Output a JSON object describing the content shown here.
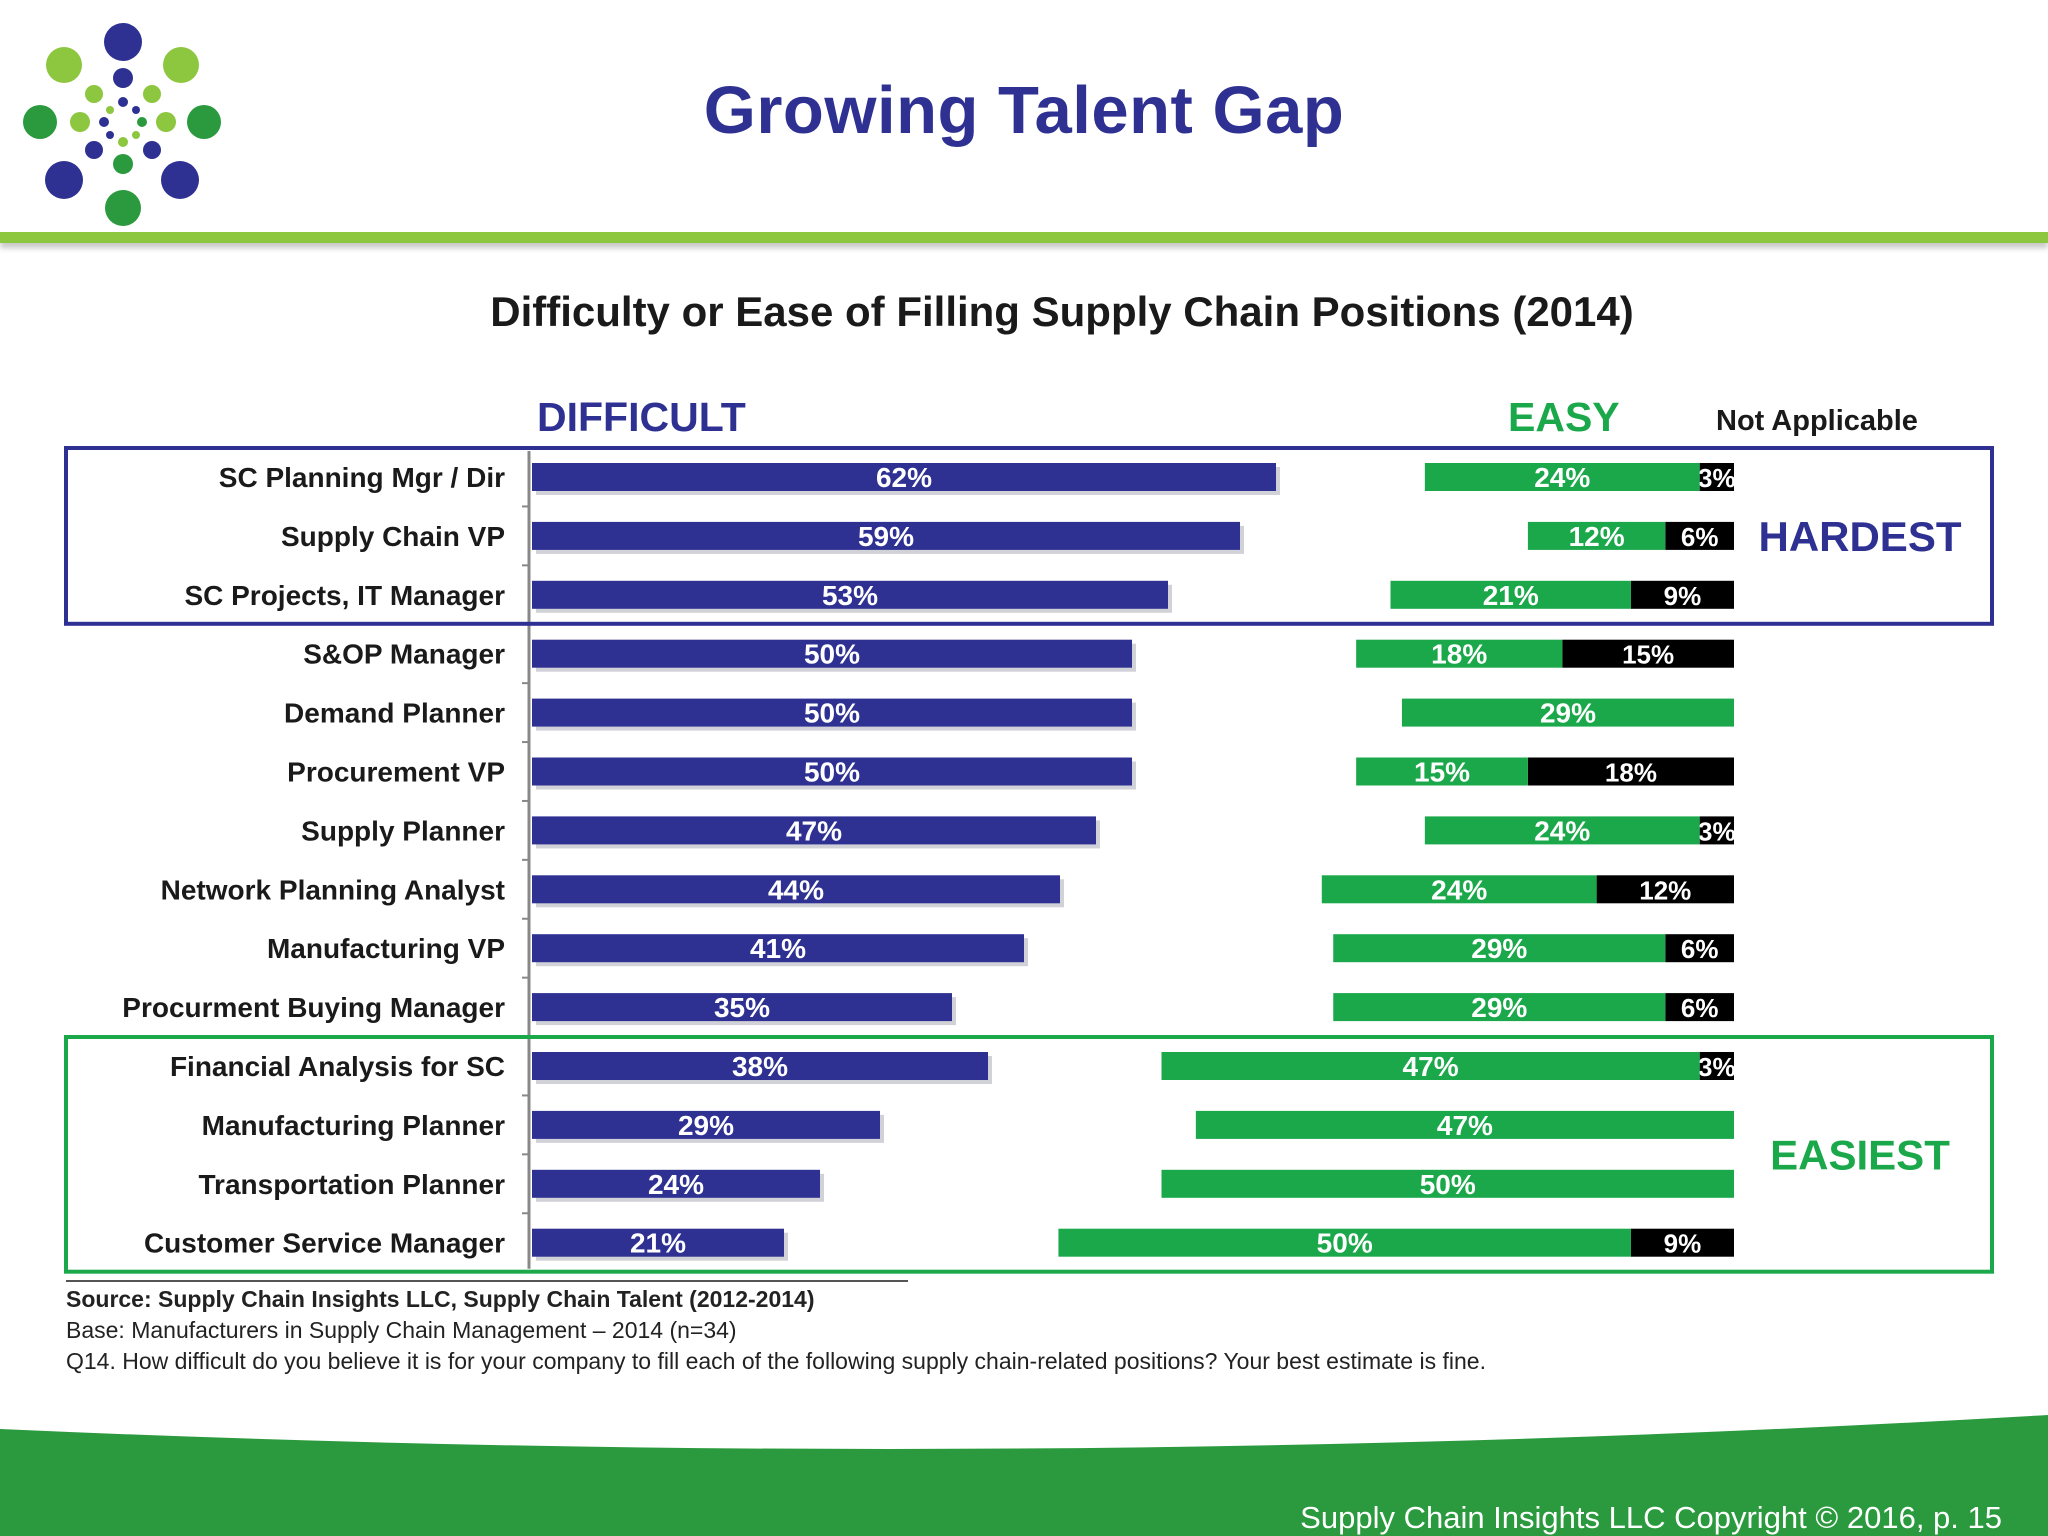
{
  "slide": {
    "title": "Growing Talent Gap",
    "footer": "Supply Chain Insights LLC Copyright © 2016, p. 15",
    "colors": {
      "title": "#2e3192",
      "header_rule": "#8dc63f",
      "footer_band": "#2b9a3e"
    }
  },
  "chart_data": {
    "type": "bar",
    "title": "Difficulty or Ease of Filling Supply Chain Positions (2014)",
    "column_headers": {
      "difficult": "DIFFICULT",
      "easy": "EASY",
      "not_applicable": "Not Applicable"
    },
    "group_labels": {
      "hardest": "HARDEST",
      "easiest": "EASIEST"
    },
    "categories": [
      "SC Planning Mgr / Dir",
      "Supply Chain VP",
      "SC Projects, IT Manager",
      "S&OP Manager",
      "Demand Planner",
      "Procurement VP",
      "Supply Planner",
      "Network Planning Analyst",
      "Manufacturing VP",
      "Procurment Buying Manager",
      "Financial Analysis for SC",
      "Manufacturing Planner",
      "Transportation Planner",
      "Customer Service Manager"
    ],
    "series": [
      {
        "name": "DIFFICULT",
        "color": "#2e3192",
        "values": [
          62,
          59,
          53,
          50,
          50,
          50,
          47,
          44,
          41,
          35,
          38,
          29,
          24,
          21
        ],
        "labels": [
          "62%",
          "59%",
          "53%",
          "50%",
          "50%",
          "50%",
          "47%",
          "44%",
          "41%",
          "35%",
          "38%",
          "29%",
          "24%",
          "21%"
        ]
      },
      {
        "name": "EASY",
        "color": "#1aa84a",
        "values": [
          24,
          12,
          21,
          18,
          29,
          15,
          24,
          24,
          29,
          29,
          47,
          47,
          50,
          50
        ],
        "labels": [
          "24%",
          "12%",
          "21%",
          "18%",
          "29%",
          "15%",
          "24%",
          "24%",
          "29%",
          "29%",
          "47%",
          "47%",
          "50%",
          "50%"
        ]
      },
      {
        "name": "Not Applicable",
        "color": "#000000",
        "values": [
          3,
          6,
          9,
          15,
          0,
          18,
          3,
          12,
          6,
          6,
          3,
          0,
          0,
          9
        ],
        "labels": [
          "3%",
          "6%",
          "9%",
          "15%",
          "0%",
          "18%",
          "3%",
          "12%",
          "6%",
          "6%",
          "3%",
          "",
          "",
          "9%"
        ]
      }
    ],
    "groups": [
      {
        "label": "HARDEST",
        "rows": [
          0,
          2
        ],
        "color": "#2e3192"
      },
      {
        "label": "EASIEST",
        "rows": [
          10,
          13
        ],
        "color": "#1aa84a"
      }
    ],
    "notes": {
      "source": "Source: Supply Chain Insights LLC, Supply Chain Talent (2012-2014)",
      "base": "Base: Manufacturers in Supply Chain Management – 2014 (n=34)",
      "question": "Q14. How difficult do you believe it is for your company to fill each of the following supply chain-related positions? Your best estimate is fine."
    }
  }
}
